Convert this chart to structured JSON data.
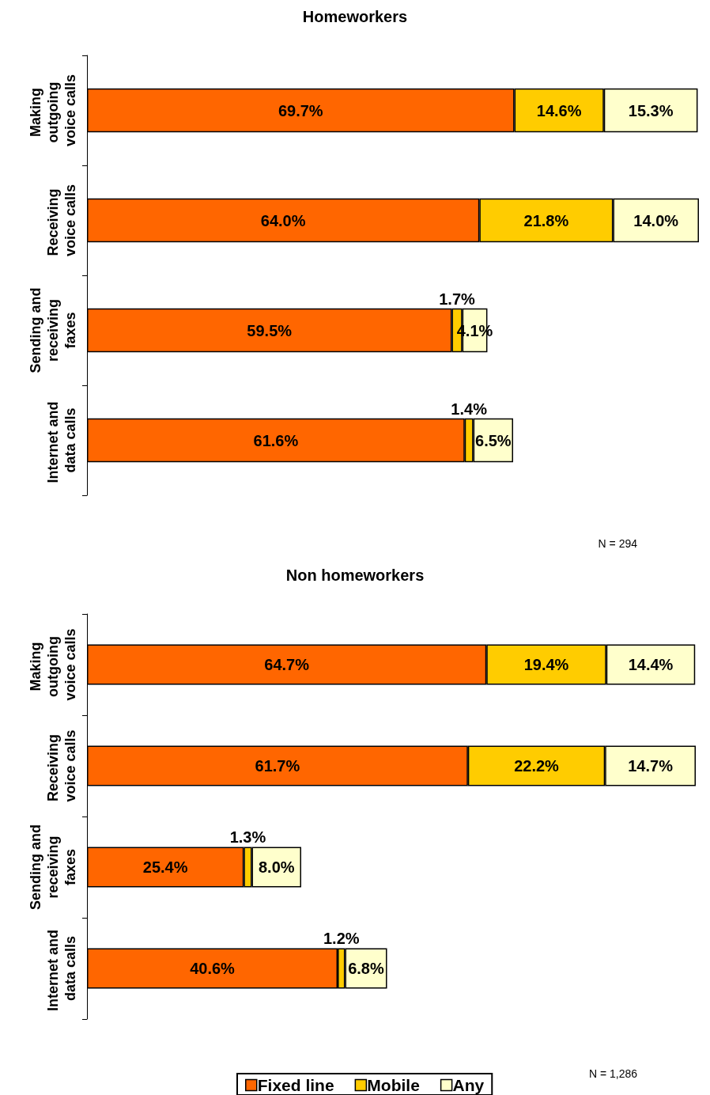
{
  "chart_data": [
    {
      "type": "bar",
      "title": "Homeworkers",
      "orientation": "horizontal",
      "stacked": true,
      "legend": false,
      "tick_labels": "y",
      "categories": [
        "Making outgoing voice calls",
        "Receiving voice calls",
        "Sending and receiving faxes",
        "Internet and data calls"
      ],
      "series": [
        {
          "color": "#ff6600",
          "values": [
            69.7,
            64.0,
            59.5,
            61.6
          ],
          "value_labels": [
            "69.7%",
            "64.0%",
            "59.5%",
            "61.6%"
          ]
        },
        {
          "color": "#ffcc00",
          "values": [
            14.6,
            21.8,
            1.7,
            1.4
          ],
          "value_labels": [
            "14.6%",
            "21.8%",
            "1.7%",
            "1.4%"
          ]
        },
        {
          "color": "#ffffcc",
          "values": [
            15.3,
            14.0,
            4.1,
            6.5
          ],
          "value_labels": [
            "15.3%",
            "14.0%",
            "4.1%",
            "6.5%"
          ]
        }
      ],
      "annotations": [
        "N = 294"
      ]
    },
    {
      "type": "bar",
      "title": "Non homeworkers",
      "orientation": "horizontal",
      "stacked": true,
      "legend": "bottom",
      "tick_labels": "y",
      "categories": [
        "Making outgoing voice calls",
        "Receiving voice calls",
        "Sending and receiving faxes",
        "Internet and data calls"
      ],
      "series": [
        {
          "name": "Fixed line",
          "color": "#ff6600",
          "values": [
            64.7,
            61.7,
            25.4,
            40.6
          ],
          "value_labels": [
            "64.7%",
            "61.7%",
            "25.4%",
            "40.6%"
          ]
        },
        {
          "name": "Mobile",
          "color": "#ffcc00",
          "values": [
            19.4,
            22.2,
            1.3,
            1.2
          ],
          "value_labels": [
            "19.4%",
            "22.2%",
            "1.3%",
            "1.2%"
          ]
        },
        {
          "name": "Any",
          "color": "#ffffcc",
          "values": [
            14.4,
            14.7,
            8.0,
            6.8
          ],
          "value_labels": [
            "14.4%",
            "14.7%",
            "8.0%",
            "6.8%"
          ]
        }
      ],
      "annotations": [
        "N = 1,286"
      ]
    }
  ]
}
